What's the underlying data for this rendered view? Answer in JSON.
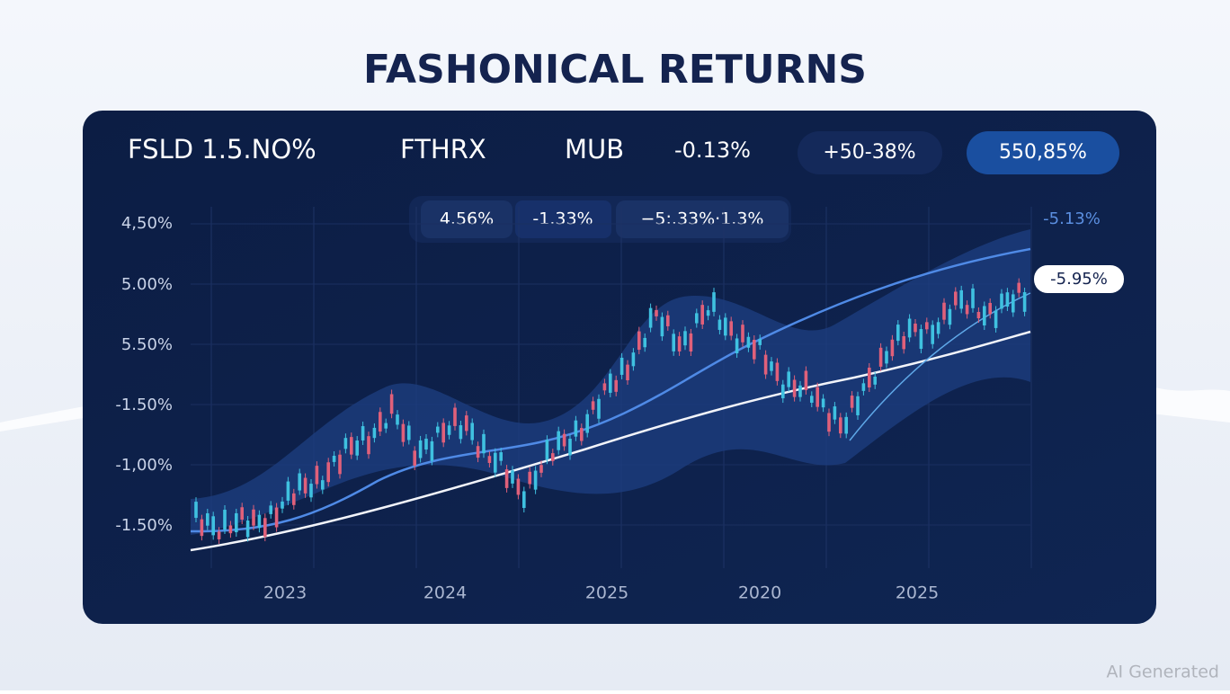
{
  "header": {
    "title": "FASHONICAL RETURNS"
  },
  "panel": {
    "tickers": [
      "FSLD 1.5.NO%",
      "FTHRX",
      "MUB",
      "-0.13%"
    ],
    "pills": [
      "+50-38%",
      "550,85%"
    ],
    "sub_pills": [
      "4.56%",
      "-1.33%",
      "−5:.33%·1.3%"
    ],
    "y_labels": [
      "4,50%",
      "5.00%",
      "5.50%",
      "-1.50%",
      "-1,00%",
      "-1.50%"
    ],
    "x_labels": [
      "2023",
      "2024",
      "2025",
      "2020",
      "2025"
    ],
    "right_label": "-5.13%",
    "right_pill": "-5.95%"
  },
  "watermark": "AI Generated"
}
